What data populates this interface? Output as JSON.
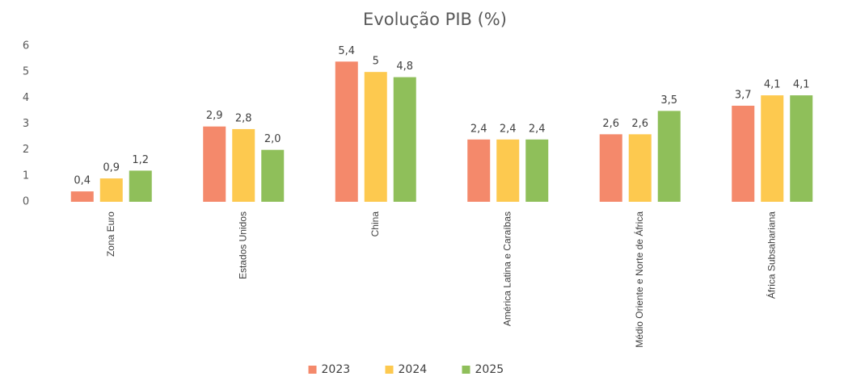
{
  "chart_data": {
    "type": "bar",
    "title": "Evolução PIB (%)",
    "categories": [
      "Zona Euro",
      "Estados Unidos",
      "China",
      "América Latina e Caraíbas",
      "Médio Oriente e Norte de África",
      "África Subsahariana"
    ],
    "series": [
      {
        "name": "2023",
        "color": "#f4896b",
        "values": [
          0.4,
          2.9,
          5.4,
          2.4,
          2.6,
          3.7
        ],
        "value_labels": [
          "0,4",
          "2,9",
          "5,4",
          "2,4",
          "2,6",
          "3,7"
        ]
      },
      {
        "name": "2024",
        "color": "#fdc94f",
        "values": [
          0.9,
          2.8,
          5,
          2.4,
          2.6,
          4.1
        ],
        "value_labels": [
          "0,9",
          "2,8",
          "5",
          "2,4",
          "2,6",
          "4,1"
        ]
      },
      {
        "name": "2025",
        "color": "#8fbf5a",
        "values": [
          1.2,
          2.0,
          4.8,
          2.4,
          3.5,
          4.1
        ],
        "value_labels": [
          "1,2",
          "2,0",
          "4,8",
          "2,4",
          "3,5",
          "4,1"
        ]
      }
    ],
    "ylim": [
      0,
      6
    ],
    "yticks": [
      0,
      1,
      2,
      3,
      4,
      5,
      6
    ],
    "grid": false,
    "legend": "bottom"
  }
}
